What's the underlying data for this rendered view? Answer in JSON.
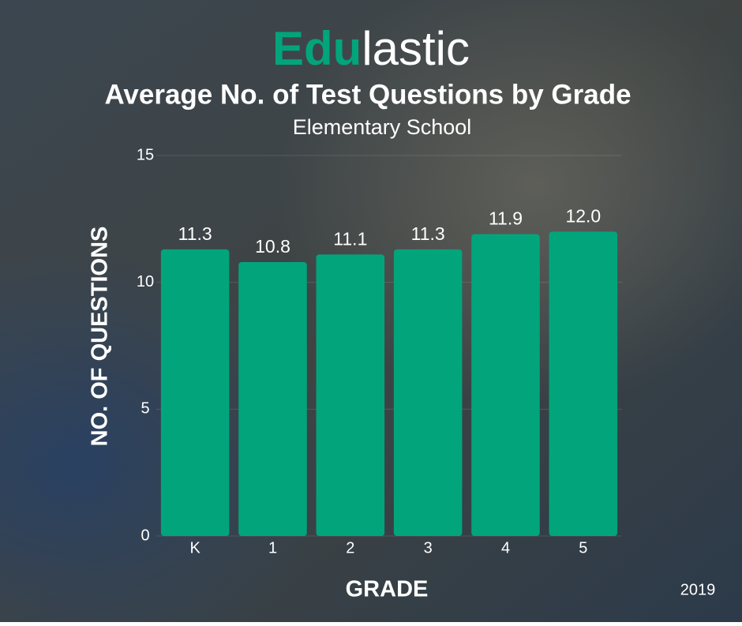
{
  "chart_data": {
    "type": "bar",
    "logo": {
      "bold": "Edu",
      "light": "lastic"
    },
    "title": "Average No. of Test Questions by Grade",
    "subtitle": "Elementary School",
    "x_label": "GRADE",
    "y_label": "NO. OF QUESTIONS",
    "note": "2019",
    "categories": [
      "K",
      "1",
      "2",
      "3",
      "4",
      "5"
    ],
    "values": [
      11.3,
      10.8,
      11.1,
      11.3,
      11.9,
      12.0
    ],
    "value_labels": [
      "11.3",
      "10.8",
      "11.1",
      "11.3",
      "11.9",
      "12.0"
    ],
    "color": "#02a57b",
    "ylim": [
      0,
      15
    ],
    "yticks": [
      0,
      5,
      10,
      15
    ],
    "grid": true
  }
}
